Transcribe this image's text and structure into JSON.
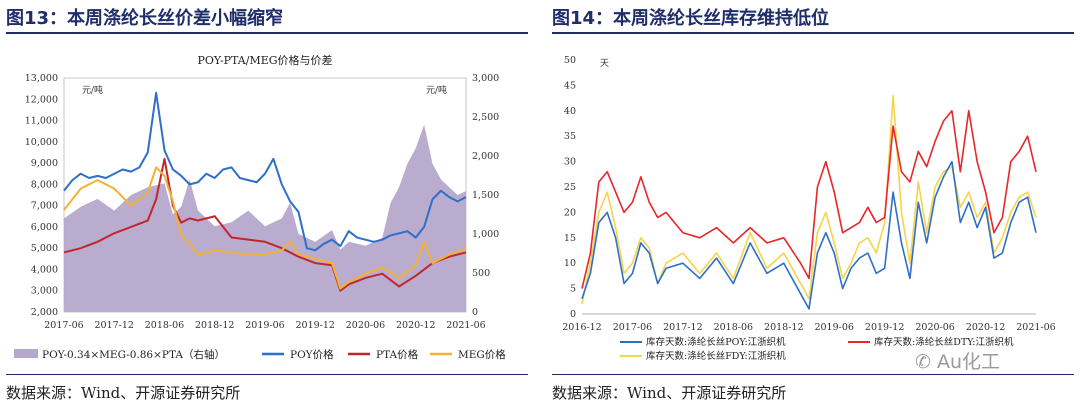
{
  "left": {
    "figure_title": "图13：本周涤纶长丝价差小幅缩窄",
    "source": "数据来源：Wind、开源证券研究所"
  },
  "right": {
    "figure_title": "图14：本周涤纶长丝库存维持低位",
    "source": "数据来源：Wind、开源证券研究所"
  },
  "watermark": "Au化工",
  "colors": {
    "title_blue": "#1f2d6b",
    "poy": "#2e6fc9",
    "pta": "#c0272d",
    "meg": "#f2b134",
    "spread": "#b6a8cc",
    "dty_red": "#e8262b",
    "fdy_yellow": "#f5d44a"
  },
  "chart_data": [
    {
      "type": "line",
      "title": "POY-PTA/MEG价格与价差",
      "ylabel_left": "元/吨",
      "ylabel_right": "元/吨",
      "ylim_left": [
        2000,
        13000
      ],
      "ylim_right": [
        0,
        3000
      ],
      "x_ticks": [
        "2017-06",
        "2017-12",
        "2018-06",
        "2018-12",
        "2019-06",
        "2019-12",
        "2020-06",
        "2020-12",
        "2021-06"
      ],
      "y_ticks_left": [
        "2,000",
        "3,000",
        "4,000",
        "5,000",
        "6,000",
        "7,000",
        "8,000",
        "9,000",
        "10,000",
        "11,000",
        "12,000",
        "13,000"
      ],
      "y_ticks_right": [
        "0",
        "500",
        "1,000",
        "1,500",
        "2,000",
        "2,500",
        "3,000"
      ],
      "x_range": [
        0,
        48
      ],
      "series": [
        {
          "name": "POY-0.34×MEG-0.86×PTA（右轴）",
          "type": "area",
          "axis": "right",
          "x": [
            0,
            2,
            4,
            6,
            8,
            10,
            12,
            13,
            14,
            15,
            16,
            18,
            20,
            22,
            24,
            26,
            27,
            28,
            30,
            32,
            33,
            34,
            36,
            38,
            39,
            40,
            41,
            42,
            43,
            44,
            45,
            46,
            47,
            48
          ],
          "y": [
            1200,
            1350,
            1450,
            1300,
            1500,
            1600,
            1650,
            1250,
            1350,
            1700,
            1300,
            1100,
            1150,
            1300,
            1100,
            1200,
            1400,
            1000,
            900,
            1050,
            800,
            900,
            850,
            950,
            1400,
            1600,
            1900,
            2100,
            2400,
            1900,
            1700,
            1600,
            1500,
            1550
          ]
        },
        {
          "name": "POY价格",
          "axis": "left",
          "x": [
            0,
            1,
            2,
            3,
            4,
            5,
            6,
            7,
            8,
            9,
            10,
            11,
            12,
            13,
            14,
            15,
            16,
            17,
            18,
            19,
            20,
            21,
            22,
            23,
            24,
            25,
            26,
            27,
            28,
            29,
            30,
            31,
            32,
            33,
            34,
            35,
            36,
            37,
            38,
            39,
            40,
            41,
            42,
            43,
            44,
            45,
            46,
            47,
            48
          ],
          "y": [
            7700,
            8200,
            8500,
            8300,
            8400,
            8300,
            8500,
            8700,
            8600,
            8800,
            9500,
            12300,
            9600,
            8700,
            8400,
            8000,
            8100,
            8500,
            8300,
            8700,
            8800,
            8300,
            8200,
            8100,
            8500,
            9200,
            8000,
            7200,
            6700,
            5000,
            4900,
            5200,
            5400,
            5100,
            5800,
            5500,
            5400,
            5300,
            5400,
            5600,
            5700,
            5800,
            5500,
            6000,
            7300,
            7700,
            7400,
            7200,
            7400
          ]
        },
        {
          "name": "PTA价格",
          "axis": "left",
          "x": [
            0,
            2,
            4,
            6,
            8,
            10,
            11,
            12,
            13,
            14,
            15,
            16,
            18,
            20,
            22,
            24,
            26,
            28,
            30,
            32,
            33,
            34,
            36,
            38,
            40,
            42,
            44,
            46,
            48
          ],
          "y": [
            4800,
            5000,
            5300,
            5700,
            6000,
            6300,
            7300,
            9200,
            7000,
            6200,
            6400,
            6300,
            6500,
            5500,
            5400,
            5300,
            5000,
            4600,
            4300,
            4200,
            3000,
            3300,
            3600,
            3800,
            3200,
            3700,
            4300,
            4600,
            4800
          ]
        },
        {
          "name": "MEG价格",
          "axis": "left",
          "x": [
            0,
            2,
            4,
            6,
            8,
            10,
            11,
            12,
            13,
            14,
            15,
            16,
            18,
            20,
            22,
            24,
            26,
            27,
            28,
            30,
            32,
            33,
            34,
            36,
            38,
            40,
            42,
            43,
            44,
            46,
            48
          ],
          "y": [
            6800,
            7800,
            8200,
            7800,
            7000,
            7600,
            8800,
            8400,
            7200,
            5600,
            5200,
            4700,
            4900,
            4800,
            4700,
            4700,
            4900,
            5300,
            4700,
            4500,
            4300,
            3100,
            3400,
            3800,
            4100,
            3600,
            4200,
            5300,
            4300,
            4700,
            5000
          ]
        }
      ]
    },
    {
      "type": "line",
      "ylabel": "天",
      "ylim": [
        0,
        50
      ],
      "x_ticks": [
        "2016-12",
        "2017-06",
        "2017-12",
        "2018-06",
        "2018-12",
        "2019-06",
        "2019-12",
        "2020-06",
        "2020-12",
        "2021-06"
      ],
      "y_ticks": [
        "0",
        "5",
        "10",
        "15",
        "20",
        "25",
        "30",
        "35",
        "40",
        "45",
        "50"
      ],
      "x_range": [
        0,
        54
      ],
      "series": [
        {
          "name": "库存天数:涤纶长丝POY:江浙织机",
          "x": [
            0,
            1,
            2,
            3,
            4,
            5,
            6,
            7,
            8,
            9,
            10,
            12,
            14,
            16,
            18,
            20,
            22,
            24,
            26,
            27,
            28,
            29,
            30,
            31,
            32,
            33,
            34,
            35,
            36,
            37,
            38,
            39,
            40,
            41,
            42,
            43,
            44,
            45,
            46,
            47,
            48,
            49,
            50,
            51,
            52,
            53,
            54
          ],
          "y": [
            3,
            8,
            18,
            20,
            15,
            6,
            8,
            14,
            12,
            6,
            9,
            10,
            7,
            11,
            6,
            14,
            8,
            10,
            4,
            1,
            12,
            16,
            12,
            5,
            9,
            11,
            12,
            8,
            9,
            24,
            14,
            7,
            22,
            14,
            23,
            27,
            30,
            18,
            22,
            17,
            21,
            11,
            12,
            18,
            22,
            23,
            16
          ]
        },
        {
          "name": "库存天数:涤纶长丝DTY:江浙织机",
          "x": [
            0,
            1,
            2,
            3,
            4,
            5,
            6,
            7,
            8,
            9,
            10,
            12,
            14,
            16,
            18,
            20,
            22,
            24,
            26,
            27,
            28,
            29,
            30,
            31,
            32,
            33,
            34,
            35,
            36,
            37,
            38,
            39,
            40,
            41,
            42,
            43,
            44,
            45,
            46,
            47,
            48,
            49,
            50,
            51,
            52,
            53,
            54
          ],
          "y": [
            5,
            12,
            26,
            28,
            24,
            20,
            22,
            27,
            22,
            19,
            20,
            16,
            15,
            17,
            14,
            17,
            14,
            15,
            10,
            7,
            25,
            30,
            24,
            16,
            17,
            18,
            21,
            18,
            19,
            37,
            28,
            26,
            32,
            29,
            34,
            38,
            40,
            28,
            40,
            30,
            24,
            16,
            19,
            30,
            32,
            35,
            28
          ]
        },
        {
          "name": "库存天数:涤纶长丝FDY:江浙织机",
          "x": [
            0,
            1,
            2,
            3,
            4,
            5,
            6,
            7,
            8,
            9,
            10,
            12,
            14,
            16,
            18,
            20,
            22,
            24,
            26,
            27,
            28,
            29,
            30,
            31,
            32,
            33,
            34,
            35,
            36,
            37,
            38,
            39,
            40,
            41,
            42,
            43,
            44,
            45,
            46,
            47,
            48,
            49,
            50,
            51,
            52,
            53,
            54
          ],
          "y": [
            2,
            10,
            20,
            24,
            17,
            8,
            10,
            15,
            13,
            6,
            10,
            12,
            8,
            12,
            7,
            16,
            9,
            12,
            6,
            3,
            16,
            20,
            14,
            7,
            10,
            14,
            15,
            12,
            18,
            43,
            20,
            10,
            26,
            16,
            25,
            28,
            29,
            21,
            24,
            19,
            22,
            12,
            15,
            20,
            23,
            24,
            19
          ]
        }
      ]
    }
  ]
}
